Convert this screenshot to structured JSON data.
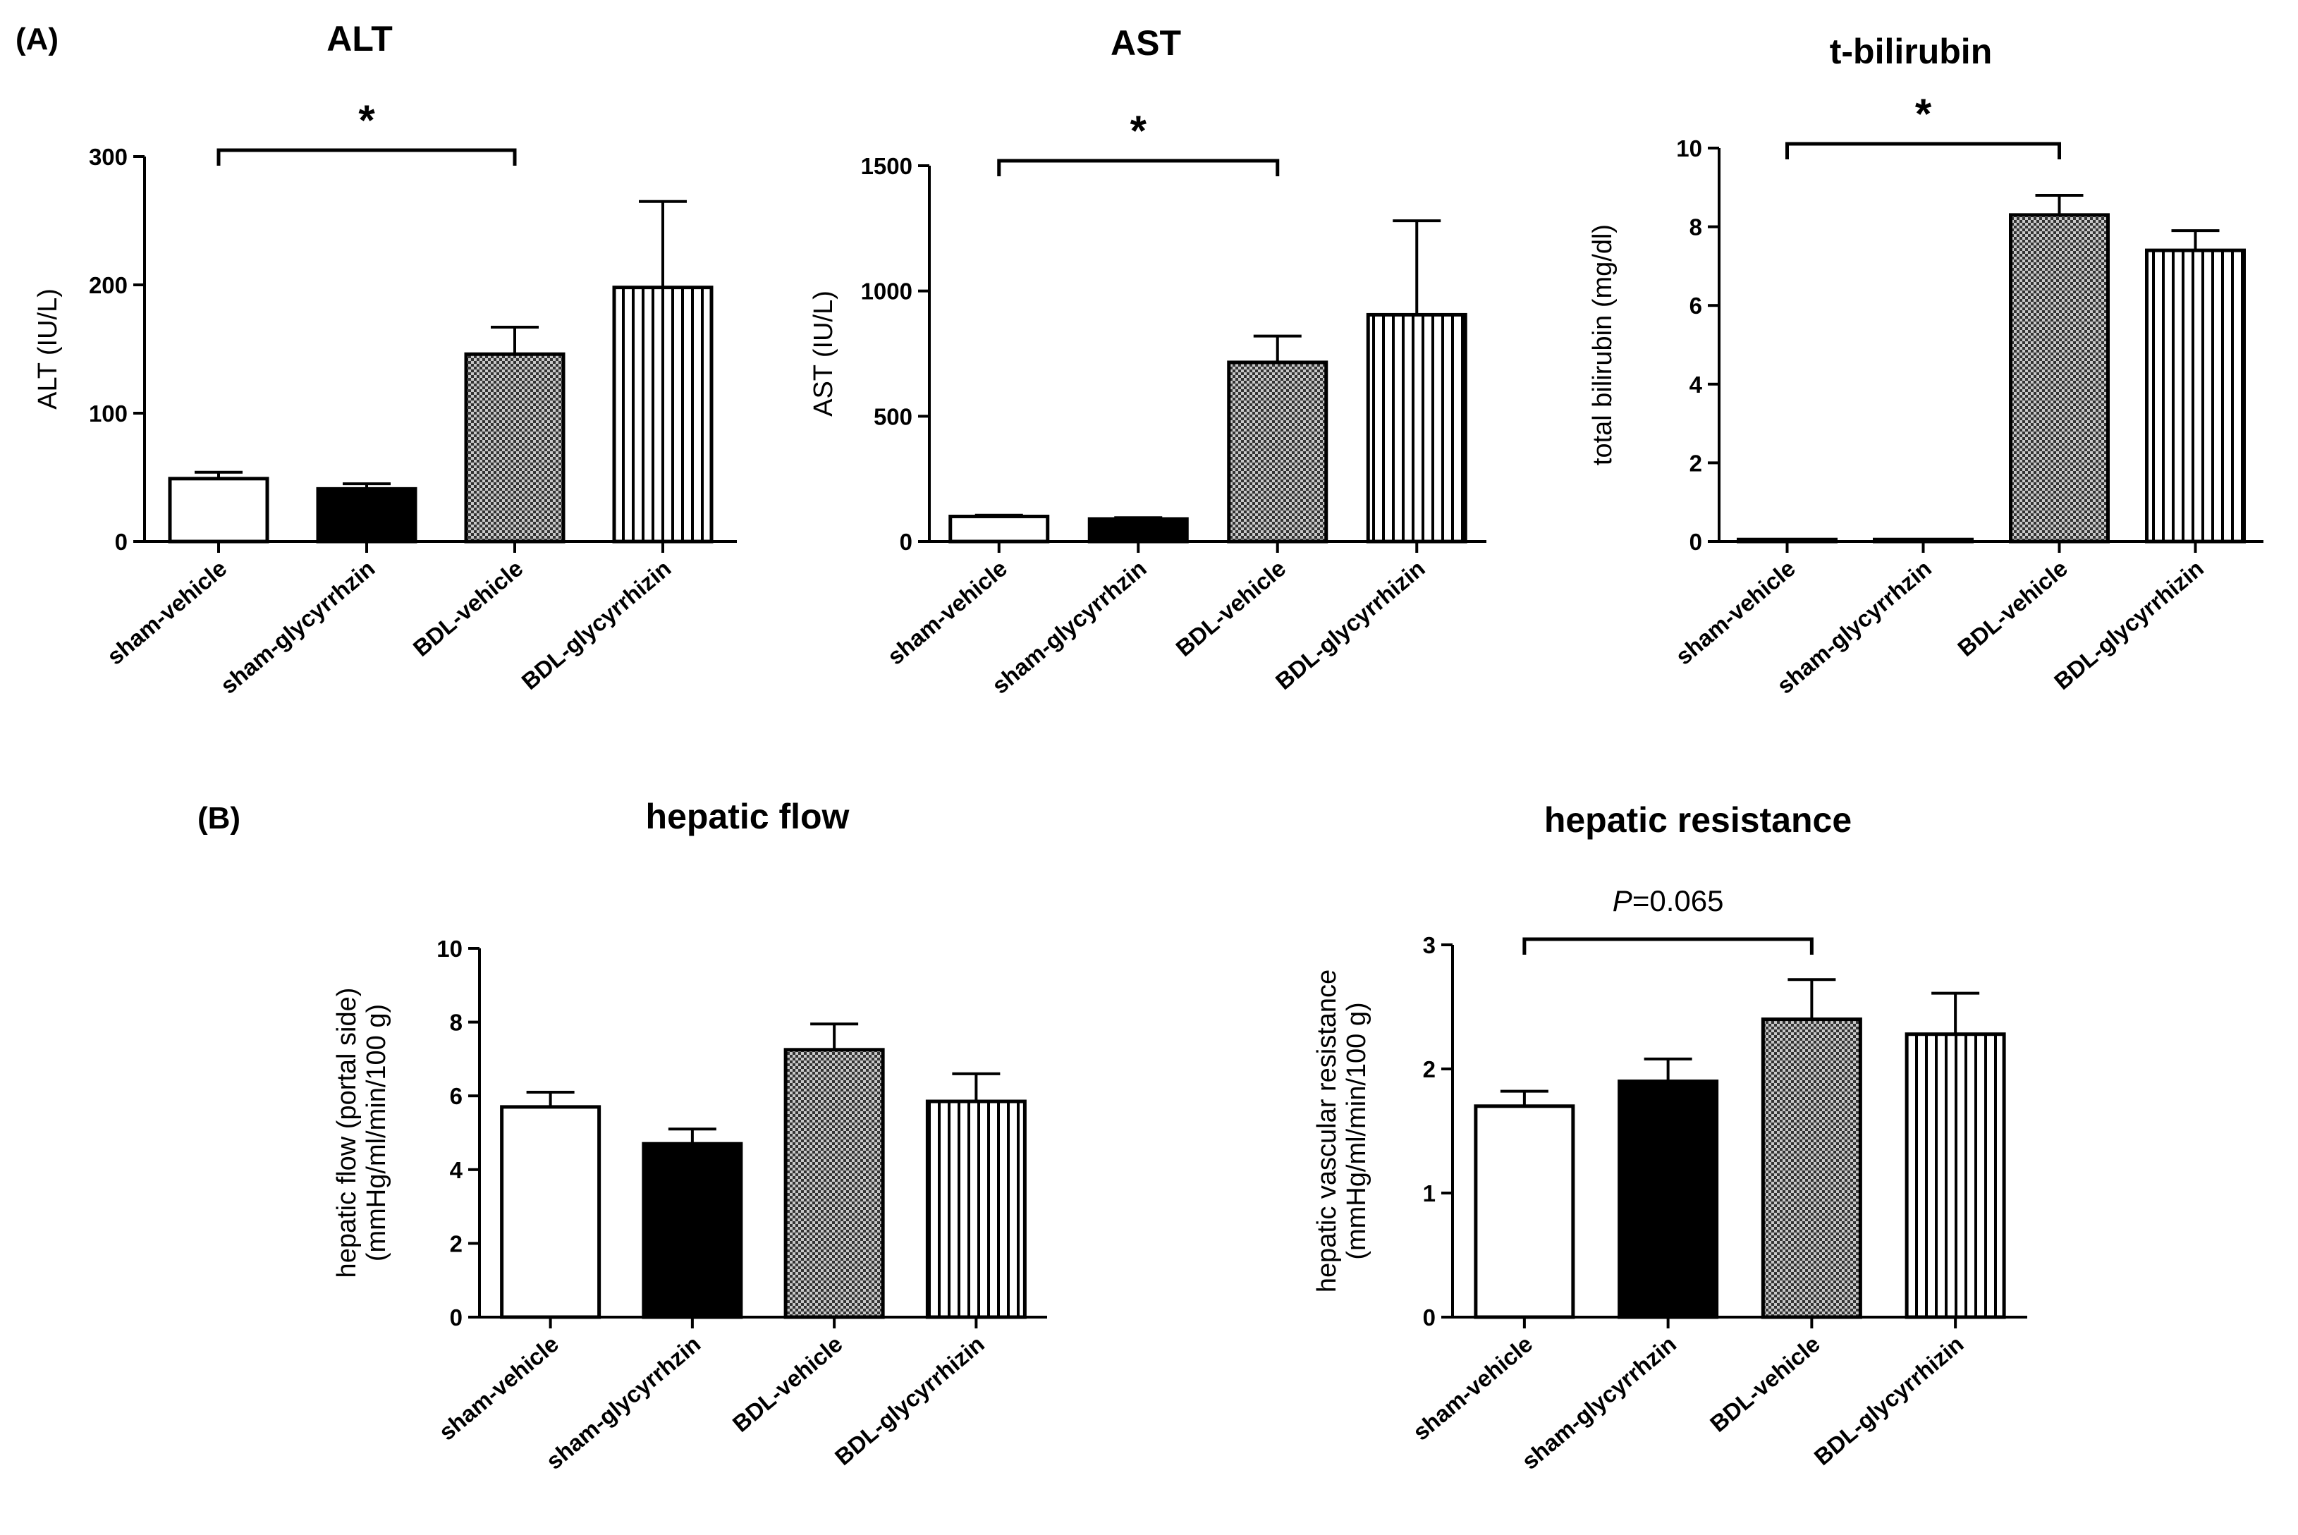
{
  "figure": {
    "panel_a_label": "(A)",
    "panel_b_label": "(B)"
  },
  "colors": {
    "ink": "#000000",
    "background": "#ffffff",
    "sham_glycyrrhizin_fill": "#000000"
  },
  "chart_data": [
    {
      "type": "bar",
      "title": "ALT",
      "ylabel": "ALT (IU/L)",
      "ylabel_lines": [
        "ALT (IU/L)"
      ],
      "xlabel": "",
      "categories": [
        "sham-vehicle",
        "sham-glycyrrhzin",
        "BDL-vehicle",
        "BDL-glycyrrhizin"
      ],
      "values": [
        49,
        41,
        146,
        198
      ],
      "errors": [
        5,
        4,
        21,
        67
      ],
      "bar_styles": [
        "open",
        "solid",
        "checker",
        "vertical"
      ],
      "ylim": [
        0,
        300
      ],
      "yticks": [
        0,
        100,
        200,
        300
      ],
      "tick_labels": [
        "0",
        "100",
        "200",
        "300"
      ],
      "significance": {
        "from": 0,
        "to": 2,
        "label": "*"
      }
    },
    {
      "type": "bar",
      "title": "AST",
      "ylabel": "AST (IU/L)",
      "ylabel_lines": [
        "AST (IU/L)"
      ],
      "xlabel": "",
      "categories": [
        "sham-vehicle",
        "sham-glycyrrhzin",
        "BDL-vehicle",
        "BDL-glycyrrhizin"
      ],
      "values": [
        100,
        90,
        715,
        905
      ],
      "errors": [
        5,
        5,
        105,
        375
      ],
      "bar_styles": [
        "open",
        "solid",
        "checker",
        "vertical"
      ],
      "ylim": [
        0,
        1500
      ],
      "yticks": [
        0,
        500,
        1000,
        1500
      ],
      "tick_labels": [
        "0",
        "500",
        "1000",
        "1500"
      ],
      "significance": {
        "from": 0,
        "to": 2,
        "label": "*"
      }
    },
    {
      "type": "bar",
      "title": "t-bilirubin",
      "ylabel": "total bilirubin (mg/dl)",
      "ylabel_lines": [
        "total bilirubin (mg/dl)"
      ],
      "xlabel": "",
      "categories": [
        "sham-vehicle",
        "sham-glycyrrhzin",
        "BDL-vehicle",
        "BDL-glycyrrhizin"
      ],
      "values": [
        0.05,
        0.05,
        8.3,
        7.4
      ],
      "errors": [
        0,
        0,
        0.5,
        0.5
      ],
      "bar_styles": [
        "open",
        "solid",
        "checker",
        "vertical"
      ],
      "ylim": [
        0,
        10
      ],
      "yticks": [
        0,
        2,
        4,
        6,
        8,
        10
      ],
      "tick_labels": [
        "0",
        "2",
        "4",
        "6",
        "8",
        "10"
      ],
      "significance": {
        "from": 0,
        "to": 2,
        "label": "*"
      }
    },
    {
      "type": "bar",
      "title": "hepatic flow",
      "ylabel": "hepatic flow (portal side) (mmHg/ml/min/100 g)",
      "ylabel_lines": [
        "hepatic flow (portal side)",
        "(mmHg/ml/min/100 g)"
      ],
      "xlabel": "",
      "categories": [
        "sham-vehicle",
        "sham-glycyrrhzin",
        "BDL-vehicle",
        "BDL-glycyrrhizin"
      ],
      "values": [
        5.7,
        4.7,
        7.25,
        5.85
      ],
      "errors": [
        0.4,
        0.4,
        0.7,
        0.75
      ],
      "bar_styles": [
        "open",
        "solid",
        "checker",
        "vertical"
      ],
      "ylim": [
        0,
        10
      ],
      "yticks": [
        0,
        2,
        4,
        6,
        8,
        10
      ],
      "tick_labels": [
        "0",
        "2",
        "4",
        "6",
        "8",
        "10"
      ],
      "significance": null
    },
    {
      "type": "bar",
      "title": "hepatic resistance",
      "ylabel": "hepatic vascular resistance (mmHg/ml/min/100 g)",
      "ylabel_lines": [
        "hepatic vascular resistance",
        "(mmHg/ml/min/100 g)"
      ],
      "xlabel": "",
      "categories": [
        "sham-vehicle",
        "sham-glycyrrhzin",
        "BDL-vehicle",
        "BDL-glycyrrhizin"
      ],
      "values": [
        1.7,
        1.9,
        2.4,
        2.28
      ],
      "errors": [
        0.12,
        0.18,
        0.32,
        0.33
      ],
      "bar_styles": [
        "open",
        "solid",
        "checker",
        "vertical"
      ],
      "ylim": [
        0,
        3
      ],
      "yticks": [
        0,
        1,
        2,
        3
      ],
      "tick_labels": [
        "0",
        "1",
        "2",
        "3"
      ],
      "significance": {
        "from": 0,
        "to": 2,
        "label_italic": "P",
        "label_rest": "=0.065"
      }
    }
  ]
}
